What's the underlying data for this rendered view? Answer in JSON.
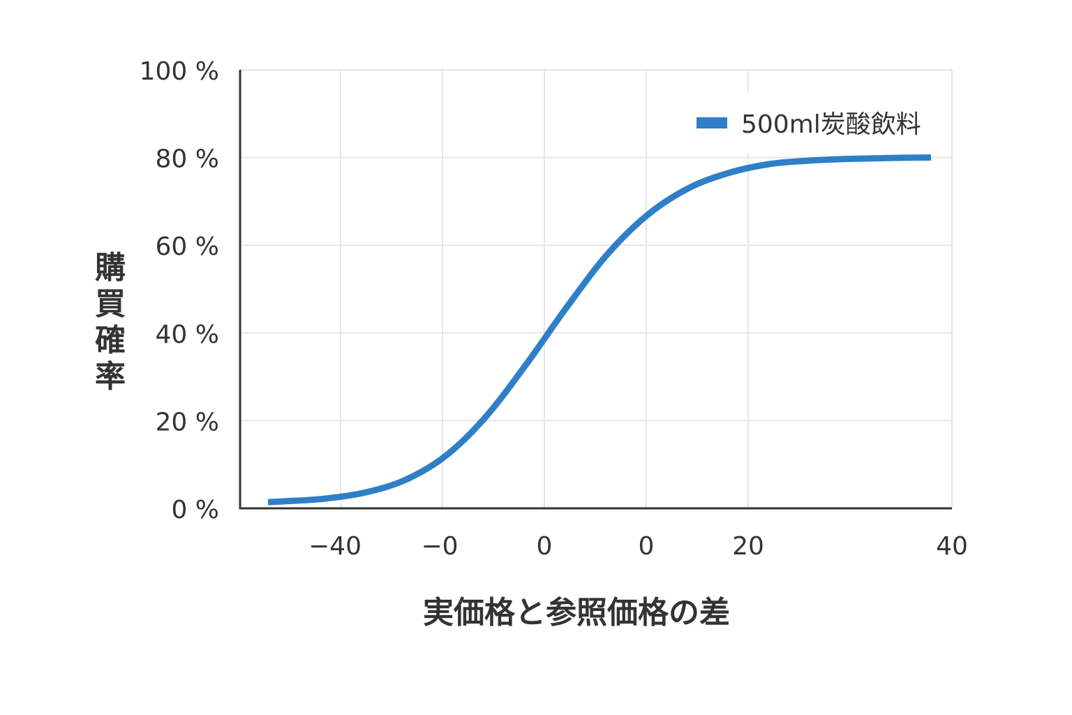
{
  "chart_data": {
    "type": "line",
    "xlabel": "実価格と参照価格の差",
    "ylabel": "購買確率",
    "x_tick_labels": [
      "−40",
      "−0",
      "0",
      "0",
      "20",
      "40"
    ],
    "y_tick_labels": [
      "0 %",
      "20 %",
      "40 %",
      "60 %",
      "80 %",
      "100 %"
    ],
    "y_ticks": [
      0,
      20,
      40,
      60,
      80,
      100
    ],
    "ylim": [
      0,
      100
    ],
    "grid": true,
    "legend_position": "top-right",
    "series": [
      {
        "name": "500ml炭酸飲料",
        "color": "#2f7fc8",
        "x": [
          -42,
          -40,
          -35,
          -30,
          -25,
          -20,
          -15,
          -10,
          -5,
          0,
          5,
          10,
          15,
          20,
          25,
          30,
          35,
          40
        ],
        "y": [
          1.4,
          1.6,
          2.2,
          3.6,
          6.5,
          12,
          21,
          33,
          46,
          58,
          67,
          73,
          76.5,
          78.5,
          79.3,
          79.7,
          79.9,
          80
        ]
      }
    ]
  }
}
